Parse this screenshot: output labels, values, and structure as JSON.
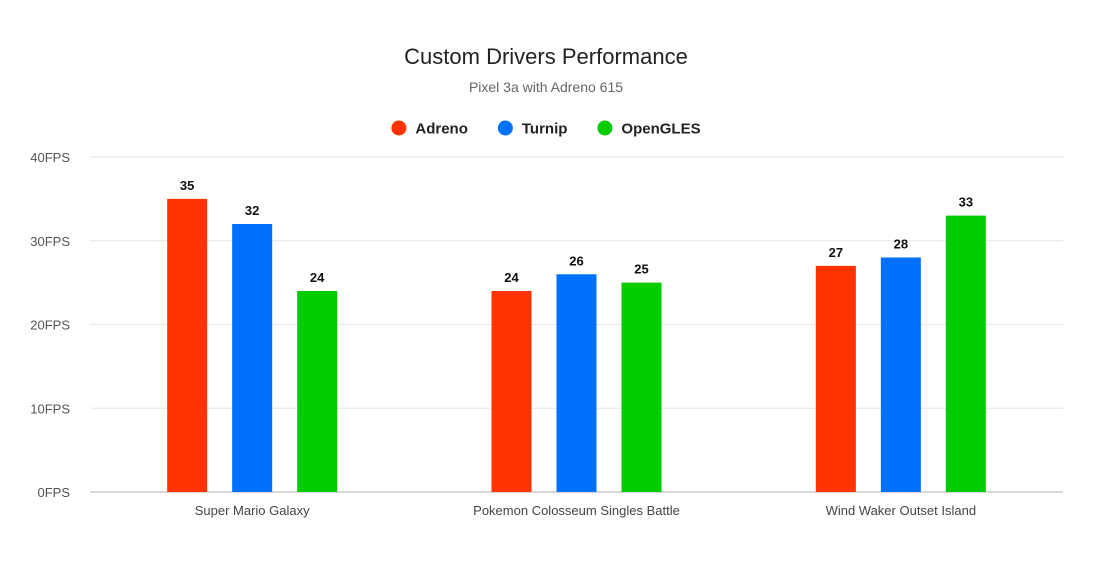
{
  "chart_data": {
    "type": "bar",
    "title": "Custom Drivers Performance",
    "subtitle": "Pixel 3a with Adreno 615",
    "categories": [
      "Super Mario Galaxy",
      "Pokemon Colosseum Singles Battle",
      "Wind Waker Outset Island"
    ],
    "series": [
      {
        "name": "Adreno",
        "color": "#ff3300",
        "values": [
          35,
          24,
          27
        ]
      },
      {
        "name": "Turnip",
        "color": "#0070ff",
        "values": [
          32,
          26,
          28
        ]
      },
      {
        "name": "OpenGLES",
        "color": "#00cc00",
        "values": [
          24,
          25,
          33
        ]
      }
    ],
    "ylim": [
      0,
      40
    ],
    "yticks": [
      0,
      10,
      20,
      30,
      40
    ],
    "ytick_labels": [
      "0FPS",
      "10FPS",
      "20FPS",
      "30FPS",
      "40FPS"
    ],
    "xlabel": "",
    "ylabel": "",
    "legend": "top-center",
    "grid": true
  }
}
